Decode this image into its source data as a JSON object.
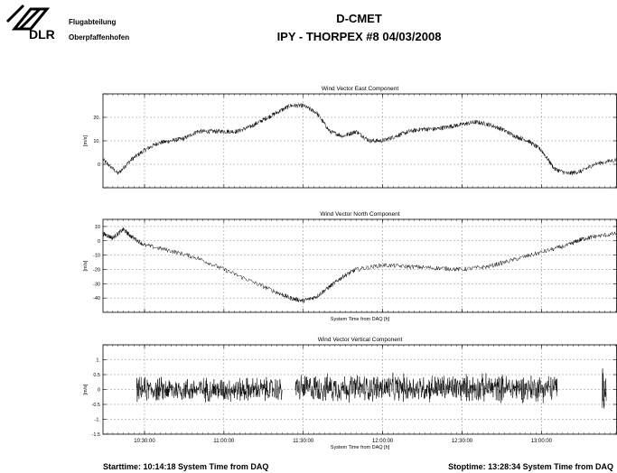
{
  "header": {
    "logo_text": "DLR",
    "org_line1": "Flugabteilung",
    "org_line2": "Oberpfaffenhofen",
    "title": "D-CMET",
    "subtitle": "IPY - THORPEX #8   04/03/2008"
  },
  "footer": {
    "start": "Starttime: 10:14:18 System Time from DAQ",
    "stop": "Stoptime: 13:28:34 System Time from DAQ"
  },
  "chart_data": [
    {
      "type": "line",
      "title": "Wind Vector East Component",
      "ylabel": "[m/s]",
      "xlabel": "",
      "xlim": [
        "10:14:18",
        "13:28:34"
      ],
      "ylim": [
        -10,
        30
      ],
      "yticks": [
        -10,
        0,
        10,
        20,
        30
      ],
      "ytick_labels": [
        "",
        "0",
        "10.",
        "20.",
        ""
      ],
      "xticks": [
        "10:30:00",
        "11:00:00",
        "11:30:00",
        "12:00:00",
        "12:30:00",
        "13:00:00"
      ],
      "show_xtick_labels": false,
      "grid": true,
      "series": [
        {
          "x": [
            "10:14:18",
            "10:20:00",
            "10:25:00",
            "10:30:00",
            "10:35:00",
            "10:40:00",
            "10:45:00",
            "10:50:00",
            "10:55:00",
            "11:00:00",
            "11:05:00",
            "11:10:00",
            "11:15:00",
            "11:20:00",
            "11:25:00",
            "11:30:00",
            "11:35:00",
            "11:40:00",
            "11:45:00",
            "11:50:00",
            "11:55:00",
            "12:00:00",
            "12:05:00",
            "12:10:00",
            "12:15:00",
            "12:20:00",
            "12:25:00",
            "12:30:00",
            "12:35:00",
            "12:40:00",
            "12:45:00",
            "12:50:00",
            "12:55:00",
            "13:00:00",
            "13:05:00",
            "13:10:00",
            "13:15:00",
            "13:20:00",
            "13:28:34"
          ],
          "y": [
            2,
            -4,
            2,
            6,
            9,
            10,
            11,
            14,
            14,
            14,
            14,
            16,
            19,
            22,
            25,
            25,
            22,
            14,
            12,
            14,
            10,
            10,
            12,
            14,
            15,
            15,
            16,
            17,
            18,
            17,
            15,
            12,
            10,
            6,
            -2,
            -4,
            -3,
            0,
            2
          ]
        }
      ]
    },
    {
      "type": "line",
      "title": "Wind Vector North Component",
      "ylabel": "[m/s]",
      "xlabel": "System Time from DAQ [h]",
      "xlim": [
        "10:14:18",
        "13:28:34"
      ],
      "ylim": [
        -50,
        15
      ],
      "yticks": [
        10,
        0,
        -10,
        -20,
        -30,
        -40
      ],
      "ytick_labels": [
        "10",
        "0",
        "-10",
        "-20",
        "-30",
        "-40"
      ],
      "xticks": [
        "10:30:00",
        "11:00:00",
        "11:30:00",
        "12:00:00",
        "12:30:00",
        "13:00:00"
      ],
      "show_xtick_labels": false,
      "grid": true,
      "series": [
        {
          "x": [
            "10:14:18",
            "10:18:00",
            "10:22:00",
            "10:25:00",
            "10:30:00",
            "10:40:00",
            "10:50:00",
            "11:00:00",
            "11:10:00",
            "11:20:00",
            "11:25:00",
            "11:30:00",
            "11:35:00",
            "11:40:00",
            "11:45:00",
            "11:50:00",
            "12:00:00",
            "12:10:00",
            "12:20:00",
            "12:30:00",
            "12:40:00",
            "12:50:00",
            "13:00:00",
            "13:10:00",
            "13:15:00",
            "13:20:00",
            "13:28:34"
          ],
          "y": [
            5,
            2,
            8,
            3,
            -3,
            -7,
            -12,
            -20,
            -28,
            -36,
            -40,
            -42,
            -39,
            -32,
            -25,
            -20,
            -17,
            -18,
            -19,
            -20,
            -18,
            -13,
            -8,
            -3,
            1,
            3,
            5
          ]
        }
      ]
    },
    {
      "type": "line",
      "title": "Wind Vector Vertical Component",
      "ylabel": "[m/s]",
      "xlabel": "System Time from DAQ [h]",
      "xlim": [
        "10:14:18",
        "13:28:34"
      ],
      "ylim": [
        -1.5,
        1.5
      ],
      "yticks": [
        1.5,
        1,
        0.5,
        0,
        -0.5,
        -1,
        -1.5
      ],
      "ytick_labels": [
        "",
        "1.",
        "0.5",
        "0",
        "-0.5",
        "-1.",
        "-1.5"
      ],
      "xticks": [
        "10:30:00",
        "11:00:00",
        "11:30:00",
        "12:00:00",
        "12:30:00",
        "13:00:00"
      ],
      "show_xtick_labels": true,
      "grid": true,
      "series": [
        {
          "segments": [
            {
              "start": "10:27:00",
              "end": "11:22:00",
              "mean": 0,
              "amplitude": 0.4
            },
            {
              "start": "11:27:00",
              "end": "13:06:00",
              "mean": 0.05,
              "amplitude": 0.45
            },
            {
              "start": "13:23:00",
              "end": "13:24:30",
              "mean": 0,
              "amplitude": 0.7
            }
          ],
          "range": [
            -1.2,
            1.0
          ]
        }
      ]
    }
  ]
}
